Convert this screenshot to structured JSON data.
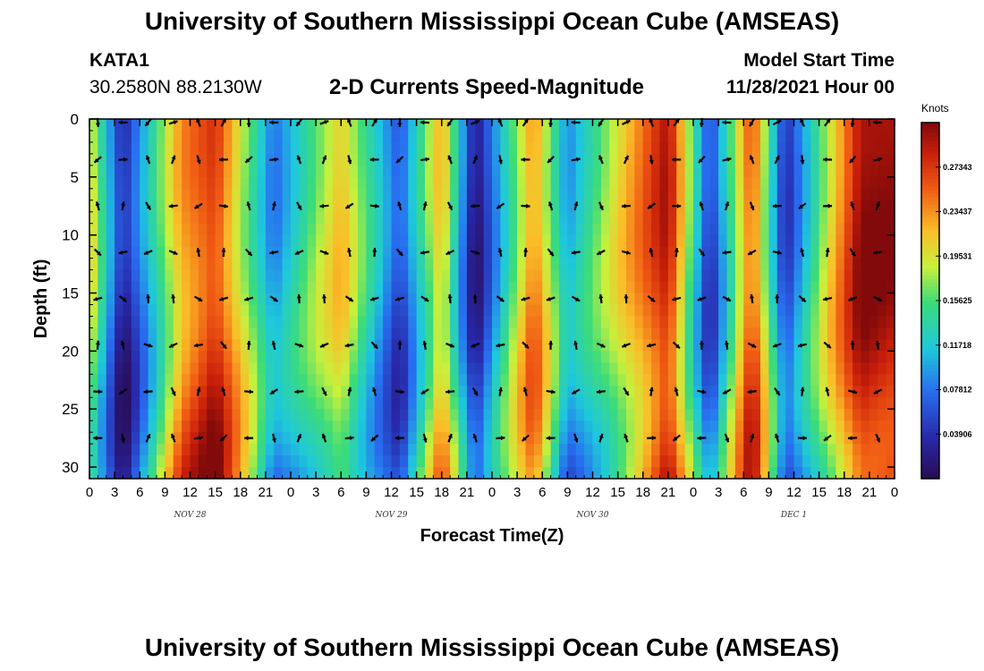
{
  "header": {
    "title": "University of Southern Mississippi Ocean Cube (AMSEAS)",
    "station": "KATA1",
    "coords": "30.2580N  88.2130W",
    "subtitle": "2-D Currents Speed-Magnitude",
    "model_start_label": "Model Start Time",
    "model_start_value": "11/28/2021 Hour 00"
  },
  "footer": {
    "title": "University of Southern Mississippi Ocean Cube (AMSEAS)"
  },
  "chart_data": {
    "type": "heatmap",
    "title": "2-D Currents Speed-Magnitude",
    "xlabel": "Forecast Time(Z)",
    "ylabel": "Depth (ft)",
    "x_tick_labels": [
      "0",
      "3",
      "6",
      "9",
      "12",
      "15",
      "18",
      "21",
      "0",
      "3",
      "6",
      "9",
      "12",
      "15",
      "18",
      "21",
      "0",
      "3",
      "6",
      "9",
      "12",
      "15",
      "18",
      "21",
      "0",
      "3",
      "6",
      "9",
      "12",
      "15",
      "18",
      "21",
      "0"
    ],
    "date_labels": [
      {
        "text": "NOV 28",
        "hour": 12
      },
      {
        "text": "NOV 29",
        "hour": 36
      },
      {
        "text": "NOV 30",
        "hour": 60
      },
      {
        "text": "DEC 1",
        "hour": 84
      }
    ],
    "x_range_hours": [
      0,
      96
    ],
    "y_ticks": [
      0,
      5,
      10,
      15,
      20,
      25,
      30
    ],
    "y_range_ft": [
      0,
      31
    ],
    "colorbar": {
      "label": "Knots",
      "range": [
        0,
        0.3125
      ],
      "ticks": [
        "0.27343",
        "0.23437",
        "0.19531",
        "0.15625",
        "0.11718",
        "0.07812",
        "0.03906"
      ],
      "tick_values": [
        0.27343,
        0.23437,
        0.19531,
        0.15625,
        0.11718,
        0.07812,
        0.03906
      ]
    },
    "approx_surface_speed_knots": [
      {
        "hour": 0,
        "speed": 0.2
      },
      {
        "hour": 4,
        "speed": 0.03
      },
      {
        "hour": 11,
        "speed": 0.24
      },
      {
        "hour": 15,
        "speed": 0.28
      },
      {
        "hour": 22,
        "speed": 0.08
      },
      {
        "hour": 30,
        "speed": 0.21
      },
      {
        "hour": 37,
        "speed": 0.06
      },
      {
        "hour": 42,
        "speed": 0.23
      },
      {
        "hour": 46,
        "speed": 0.02
      },
      {
        "hour": 53,
        "speed": 0.24
      },
      {
        "hour": 57,
        "speed": 0.09
      },
      {
        "hour": 69,
        "speed": 0.3
      },
      {
        "hour": 74,
        "speed": 0.05
      },
      {
        "hour": 79,
        "speed": 0.27
      },
      {
        "hour": 83,
        "speed": 0.04
      },
      {
        "hour": 92,
        "speed": 0.3
      }
    ],
    "vectors_note": "Black arrows show current direction on a 3-hour by ~4 ft grid"
  }
}
